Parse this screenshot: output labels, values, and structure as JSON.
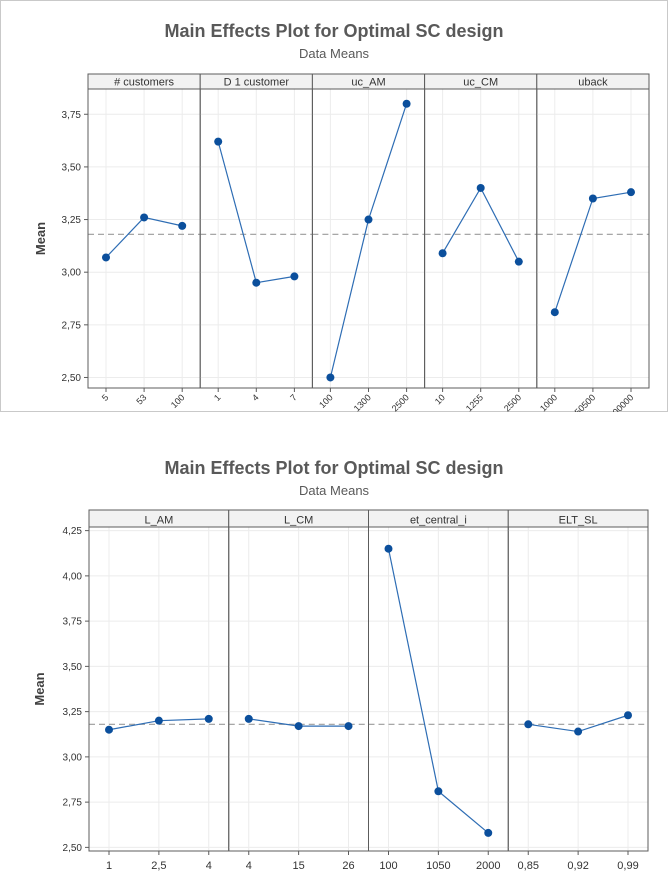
{
  "chart_data": [
    {
      "type": "line",
      "title": "Main Effects Plot for Optimal SC design",
      "subtitle": "Data Means",
      "ylabel": "Mean",
      "ylim": [
        2.45,
        3.87
      ],
      "yticks": [
        "2,50",
        "2,75",
        "3,00",
        "3,25",
        "3,50",
        "3,75"
      ],
      "ytick_values": [
        2.5,
        2.75,
        3.0,
        3.25,
        3.5,
        3.75
      ],
      "reference_line": 3.18,
      "grid": true,
      "panels": [
        {
          "name": "# customers",
          "categories": [
            "5",
            "53",
            "100"
          ],
          "values": [
            3.07,
            3.26,
            3.22
          ]
        },
        {
          "name": "D 1 customer",
          "categories": [
            "1",
            "4",
            "7"
          ],
          "values": [
            3.62,
            2.95,
            2.98
          ]
        },
        {
          "name": "uc_AM",
          "categories": [
            "100",
            "1300",
            "2500"
          ],
          "values": [
            2.5,
            3.25,
            3.8
          ]
        },
        {
          "name": "uc_CM",
          "categories": [
            "10",
            "1255",
            "2500"
          ],
          "values": [
            3.09,
            3.4,
            3.05
          ]
        },
        {
          "name": "uback",
          "categories": [
            "1000",
            "50500",
            "100000"
          ],
          "values": [
            2.81,
            3.35,
            3.38
          ]
        }
      ],
      "colors": {
        "line": "#2e6db4",
        "marker": "#0b4f9c",
        "refline": "#9b9b9b",
        "header": "#f2f2f2"
      }
    },
    {
      "type": "line",
      "title": "Main Effects Plot for Optimal SC design",
      "subtitle": "Data Means",
      "ylabel": "Mean",
      "ylim": [
        2.48,
        4.27
      ],
      "yticks": [
        "2,50",
        "2,75",
        "3,00",
        "3,25",
        "3,50",
        "3,75",
        "4,00",
        "4,25"
      ],
      "ytick_values": [
        2.5,
        2.75,
        3.0,
        3.25,
        3.5,
        3.75,
        4.0,
        4.25
      ],
      "reference_line": 3.18,
      "grid": true,
      "panels": [
        {
          "name": "L_AM",
          "categories": [
            "1",
            "2,5",
            "4"
          ],
          "values": [
            3.15,
            3.2,
            3.21
          ]
        },
        {
          "name": "L_CM",
          "categories": [
            "4",
            "15",
            "26"
          ],
          "values": [
            3.21,
            3.17,
            3.17
          ]
        },
        {
          "name": "et_central_i",
          "categories": [
            "100",
            "1050",
            "2000"
          ],
          "values": [
            4.15,
            2.81,
            2.58
          ]
        },
        {
          "name": "ELT_SL",
          "categories": [
            "0,85",
            "0,92",
            "0,99"
          ],
          "values": [
            3.18,
            3.14,
            3.23
          ]
        }
      ],
      "colors": {
        "line": "#2e6db4",
        "marker": "#0b4f9c",
        "refline": "#9b9b9b",
        "header": "#f2f2f2"
      }
    }
  ]
}
